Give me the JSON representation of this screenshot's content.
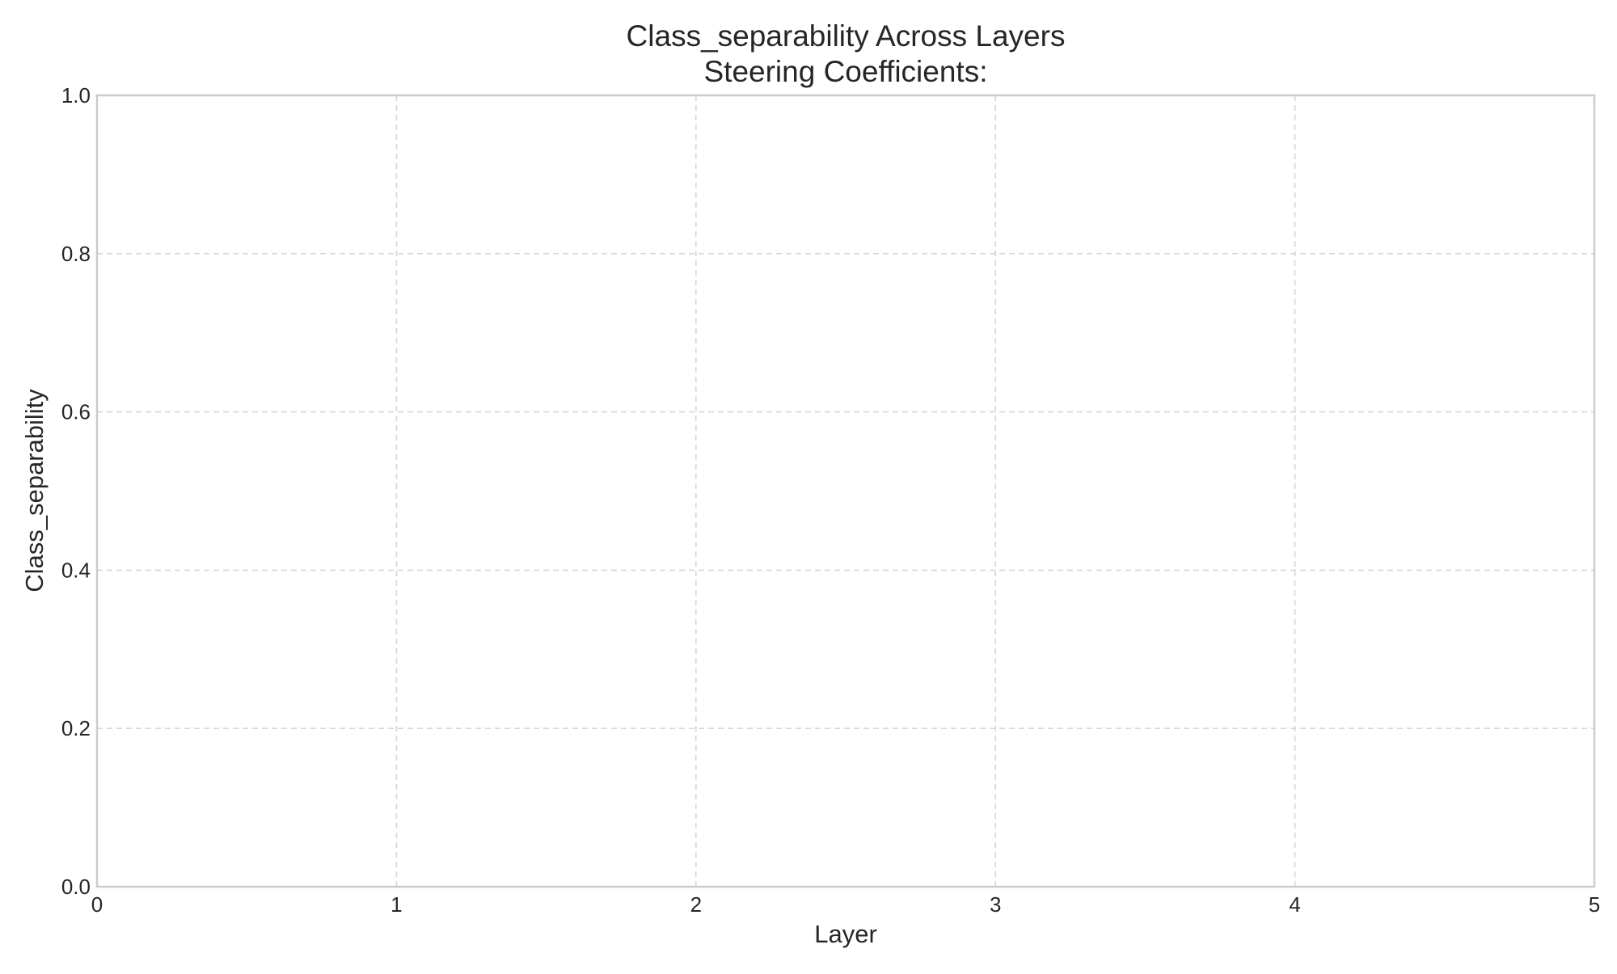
{
  "chart_data": {
    "type": "line",
    "title": "Class_separability Across Layers",
    "subtitle": "Steering Coefficients:",
    "xlabel": "Layer",
    "ylabel": "Class_separability",
    "xlim": [
      0,
      5
    ],
    "ylim": [
      0.0,
      1.0
    ],
    "xticks": [
      0,
      1,
      2,
      3,
      4,
      5
    ],
    "xtick_labels": [
      "0",
      "1",
      "2",
      "3",
      "4",
      "5"
    ],
    "yticks": [
      0.0,
      0.2,
      0.4,
      0.6,
      0.8,
      1.0
    ],
    "ytick_labels": [
      "0.0",
      "0.2",
      "0.4",
      "0.6",
      "0.8",
      "1.0"
    ],
    "grid": true,
    "series": []
  },
  "colors": {
    "background": "#ffffff",
    "grid": "#d6d6d6",
    "frame": "#cccccc",
    "text": "#262626"
  }
}
